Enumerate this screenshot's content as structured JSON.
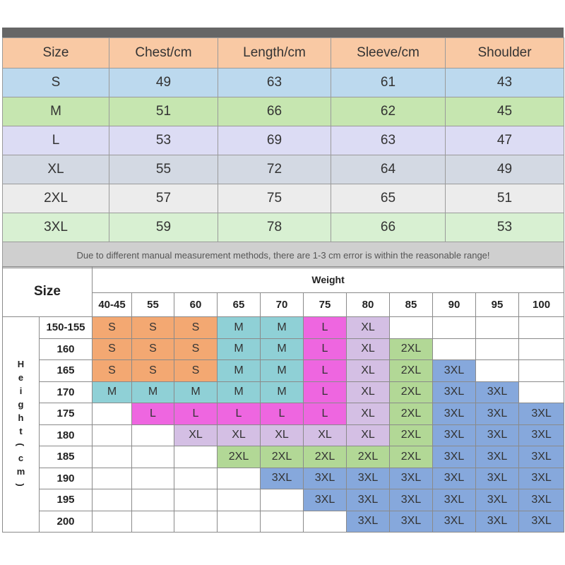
{
  "measurement_table": {
    "headers": [
      "Size",
      "Chest/cm",
      "Length/cm",
      "Sleeve/cm",
      "Shoulder"
    ],
    "rows": [
      [
        "S",
        "49",
        "63",
        "61",
        "43"
      ],
      [
        "M",
        "51",
        "66",
        "62",
        "45"
      ],
      [
        "L",
        "53",
        "69",
        "63",
        "47"
      ],
      [
        "XL",
        "55",
        "72",
        "64",
        "49"
      ],
      [
        "2XL",
        "57",
        "75",
        "65",
        "51"
      ],
      [
        "3XL",
        "59",
        "78",
        "66",
        "53"
      ]
    ],
    "note": "Due to different manual measurement methods, there are 1-3 cm error is within the reasonable range!"
  },
  "size_chart": {
    "size_label": "Size",
    "weight_label": "Weight",
    "height_label": [
      "H",
      "e",
      "i",
      "g",
      "h",
      "t",
      "(",
      "c",
      "m",
      ")"
    ],
    "weights": [
      "40-45",
      "55",
      "60",
      "65",
      "70",
      "75",
      "80",
      "85",
      "90",
      "95",
      "100"
    ],
    "heights": [
      "150-155",
      "160",
      "165",
      "170",
      "175",
      "180",
      "185",
      "190",
      "195",
      "200"
    ],
    "grid": [
      [
        "S",
        "S",
        "S",
        "M",
        "M",
        "L",
        "XL",
        "",
        "",
        "",
        ""
      ],
      [
        "S",
        "S",
        "S",
        "M",
        "M",
        "L",
        "XL",
        "2XL",
        "",
        "",
        ""
      ],
      [
        "S",
        "S",
        "S",
        "M",
        "M",
        "L",
        "XL",
        "2XL",
        "3XL",
        "",
        ""
      ],
      [
        "M",
        "M",
        "M",
        "M",
        "M",
        "L",
        "XL",
        "2XL",
        "3XL",
        "3XL",
        ""
      ],
      [
        "",
        "L",
        "L",
        "L",
        "L",
        "L",
        "XL",
        "2XL",
        "3XL",
        "3XL",
        "3XL"
      ],
      [
        "",
        "",
        "XL",
        "XL",
        "XL",
        "XL",
        "XL",
        "2XL",
        "3XL",
        "3XL",
        "3XL"
      ],
      [
        "",
        "",
        "",
        "2XL",
        "2XL",
        "2XL",
        "2XL",
        "2XL",
        "3XL",
        "3XL",
        "3XL"
      ],
      [
        "",
        "",
        "",
        "",
        "3XL",
        "3XL",
        "3XL",
        "3XL",
        "3XL",
        "3XL",
        "3XL"
      ],
      [
        "",
        "",
        "",
        "",
        "",
        "3XL",
        "3XL",
        "3XL",
        "3XL",
        "3XL",
        "3XL"
      ],
      [
        "",
        "",
        "",
        "",
        "",
        "",
        "3XL",
        "3XL",
        "3XL",
        "3XL",
        "3XL"
      ]
    ]
  },
  "colors": {
    "header_row": "#f9c9a4",
    "measure_rows": [
      "#bcd9ee",
      "#c6e6b0",
      "#dcdcf4",
      "#d3d9e3",
      "#ececec",
      "#d8f0d2"
    ],
    "note_bg": "#cfcfcf",
    "size_fill": {
      "S": "#f3a872",
      "M": "#8fd0d6",
      "L": "#ee66e0",
      "XL": "#d4bfe4",
      "2XL": "#b2d896",
      "3XL": "#86a8dc"
    }
  }
}
